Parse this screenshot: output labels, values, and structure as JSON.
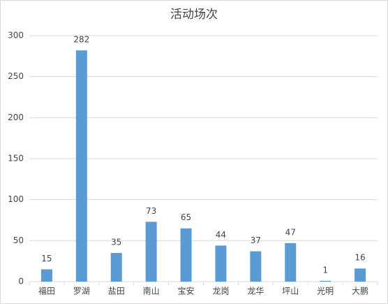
{
  "chart_data": {
    "type": "bar",
    "title": "活动场次",
    "categories": [
      "福田",
      "罗湖",
      "盐田",
      "南山",
      "宝安",
      "龙岗",
      "龙华",
      "坪山",
      "光明",
      "大鹏"
    ],
    "values": [
      15,
      282,
      35,
      73,
      65,
      44,
      37,
      47,
      1,
      16
    ],
    "color": "#5b9bd5",
    "ylim": [
      0,
      300
    ],
    "yticks": [
      0,
      50,
      100,
      150,
      200,
      250,
      300
    ],
    "grid": true
  }
}
